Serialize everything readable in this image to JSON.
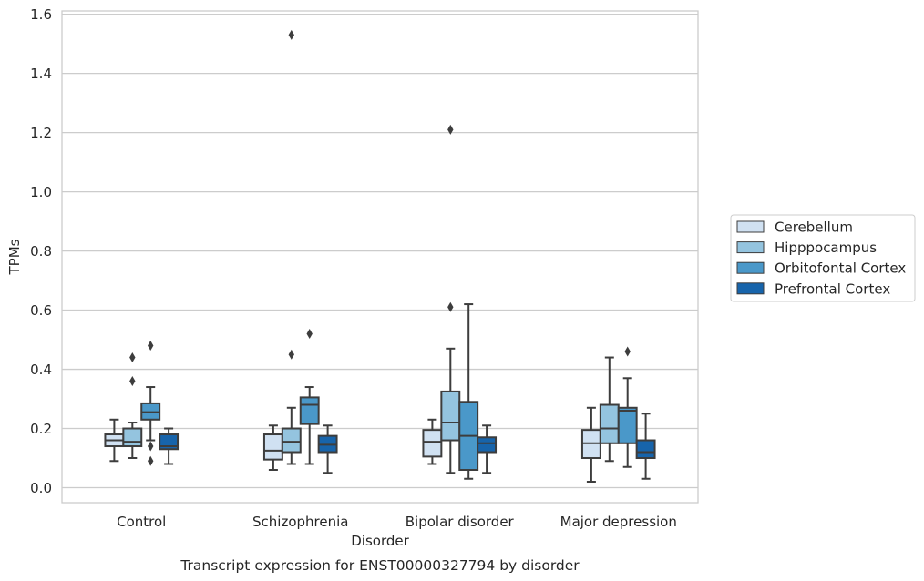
{
  "chart_data": {
    "type": "box",
    "caption": "Transcript expression for ENST00000327794 by disorder",
    "xlabel": "Disorder",
    "ylabel": "TPMs",
    "ylim": [
      -0.05,
      1.61
    ],
    "yticks": [
      0.0,
      0.2,
      0.4,
      0.6,
      0.8,
      1.0,
      1.2,
      1.4,
      1.6
    ],
    "ytick_labels": [
      "0.0",
      "0.2",
      "0.4",
      "0.6",
      "0.8",
      "1.0",
      "1.2",
      "1.4",
      "1.6"
    ],
    "grid": "horizontal",
    "legend_position": "right",
    "categories": [
      "Control",
      "Schizophrenia",
      "Bipolar disorder",
      "Major depression"
    ],
    "series": [
      {
        "name": "Cerebellum",
        "color": "#d0e1f2",
        "boxes": [
          {
            "whisker_low": 0.09,
            "q1": 0.14,
            "median": 0.16,
            "q3": 0.18,
            "whisker_high": 0.23,
            "outliers": []
          },
          {
            "whisker_low": 0.06,
            "q1": 0.095,
            "median": 0.125,
            "q3": 0.18,
            "whisker_high": 0.21,
            "outliers": []
          },
          {
            "whisker_low": 0.08,
            "q1": 0.105,
            "median": 0.155,
            "q3": 0.195,
            "whisker_high": 0.23,
            "outliers": []
          },
          {
            "whisker_low": 0.02,
            "q1": 0.1,
            "median": 0.15,
            "q3": 0.195,
            "whisker_high": 0.27,
            "outliers": []
          }
        ]
      },
      {
        "name": "Hipppocampus",
        "color": "#94c4df",
        "boxes": [
          {
            "whisker_low": 0.1,
            "q1": 0.14,
            "median": 0.155,
            "q3": 0.2,
            "whisker_high": 0.22,
            "outliers": [
              0.36,
              0.44
            ]
          },
          {
            "whisker_low": 0.08,
            "q1": 0.12,
            "median": 0.155,
            "q3": 0.2,
            "whisker_high": 0.27,
            "outliers": [
              0.45,
              1.53
            ]
          },
          {
            "whisker_low": 0.05,
            "q1": 0.16,
            "median": 0.22,
            "q3": 0.325,
            "whisker_high": 0.47,
            "outliers": [
              0.61,
              1.21
            ]
          },
          {
            "whisker_low": 0.09,
            "q1": 0.15,
            "median": 0.2,
            "q3": 0.28,
            "whisker_high": 0.44,
            "outliers": []
          }
        ]
      },
      {
        "name": "Orbitofontal Cortex",
        "color": "#4a98c9",
        "boxes": [
          {
            "whisker_low": 0.16,
            "q1": 0.23,
            "median": 0.255,
            "q3": 0.285,
            "whisker_high": 0.34,
            "outliers": [
              0.09,
              0.14,
              0.48
            ]
          },
          {
            "whisker_low": 0.08,
            "q1": 0.215,
            "median": 0.28,
            "q3": 0.305,
            "whisker_high": 0.34,
            "outliers": [
              0.52
            ]
          },
          {
            "whisker_low": 0.03,
            "q1": 0.06,
            "median": 0.175,
            "q3": 0.29,
            "whisker_high": 0.62,
            "outliers": []
          },
          {
            "whisker_low": 0.07,
            "q1": 0.15,
            "median": 0.26,
            "q3": 0.27,
            "whisker_high": 0.37,
            "outliers": [
              0.46
            ]
          }
        ]
      },
      {
        "name": "Prefrontal Cortex",
        "color": "#1764ab",
        "boxes": [
          {
            "whisker_low": 0.08,
            "q1": 0.13,
            "median": 0.14,
            "q3": 0.18,
            "whisker_high": 0.2,
            "outliers": []
          },
          {
            "whisker_low": 0.05,
            "q1": 0.12,
            "median": 0.145,
            "q3": 0.175,
            "whisker_high": 0.21,
            "outliers": []
          },
          {
            "whisker_low": 0.05,
            "q1": 0.12,
            "median": 0.15,
            "q3": 0.17,
            "whisker_high": 0.21,
            "outliers": []
          },
          {
            "whisker_low": 0.03,
            "q1": 0.1,
            "median": 0.12,
            "q3": 0.16,
            "whisker_high": 0.25,
            "outliers": []
          }
        ]
      }
    ]
  }
}
